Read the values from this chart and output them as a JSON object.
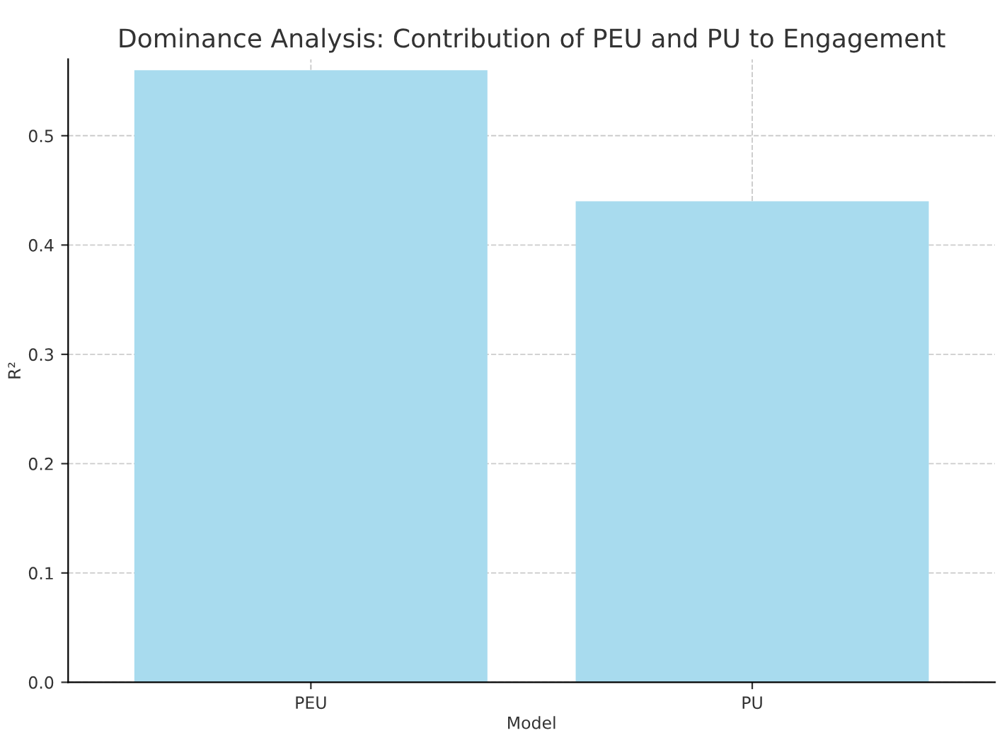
{
  "chart_data": {
    "type": "bar",
    "title": "Dominance Analysis: Contribution of PEU and PU to Engagement",
    "xlabel": "Model",
    "ylabel": "R²",
    "categories": [
      "PEU",
      "PU"
    ],
    "values": [
      0.56,
      0.44
    ],
    "color": "#a8dbee",
    "ylim": [
      0,
      0.57
    ],
    "yticks": [
      {
        "value": 0,
        "label": "0.0"
      },
      0.1,
      0.2,
      0.3,
      0.4,
      0.5
    ],
    "grid": true
  }
}
